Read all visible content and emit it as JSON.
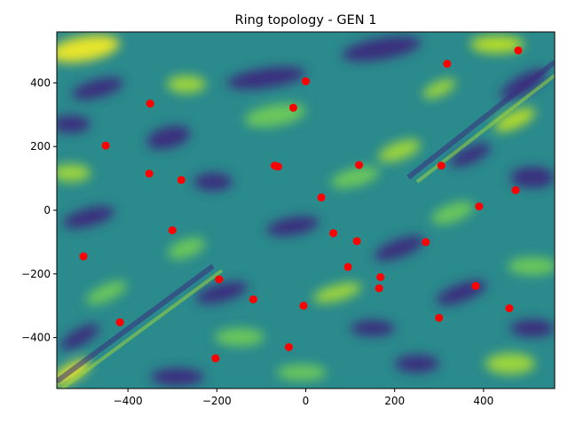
{
  "chart_data": {
    "type": "scatter",
    "title": "Ring topology - GEN 1",
    "xlabel": "",
    "ylabel": "",
    "xlim": [
      -560,
      560
    ],
    "ylim": [
      -560,
      560
    ],
    "xticks": [
      -400,
      -200,
      0,
      200,
      400
    ],
    "yticks": [
      -400,
      -200,
      0,
      200,
      400
    ],
    "xtick_labels": [
      "−400",
      "−200",
      "0",
      "200",
      "400"
    ],
    "ytick_labels": [
      "−400",
      "−200",
      "0",
      "200",
      "400"
    ],
    "grid": false,
    "background": "filled contour map (viridis colormap)",
    "colors": {
      "points": "#ff0000",
      "contour_low": "#3b2e7e",
      "contour_mid": "#2a8a8c",
      "contour_high": "#e6e52a"
    },
    "points": [
      {
        "x": 478,
        "y": 502
      },
      {
        "x": 318,
        "y": 460
      },
      {
        "x": 0,
        "y": 405
      },
      {
        "x": -350,
        "y": 335
      },
      {
        "x": -28,
        "y": 322
      },
      {
        "x": -450,
        "y": 203
      },
      {
        "x": -70,
        "y": 140
      },
      {
        "x": -62,
        "y": 137
      },
      {
        "x": 120,
        "y": 142
      },
      {
        "x": 305,
        "y": 140
      },
      {
        "x": -352,
        "y": 115
      },
      {
        "x": -280,
        "y": 95
      },
      {
        "x": 472,
        "y": 63
      },
      {
        "x": 35,
        "y": 40
      },
      {
        "x": 390,
        "y": 12
      },
      {
        "x": -300,
        "y": -63
      },
      {
        "x": 62,
        "y": -72
      },
      {
        "x": 115,
        "y": -97
      },
      {
        "x": 270,
        "y": -100
      },
      {
        "x": -500,
        "y": -145
      },
      {
        "x": 95,
        "y": -178
      },
      {
        "x": 168,
        "y": -210
      },
      {
        "x": -195,
        "y": -217
      },
      {
        "x": 165,
        "y": -245
      },
      {
        "x": 382,
        "y": -238
      },
      {
        "x": -118,
        "y": -280
      },
      {
        "x": -5,
        "y": -300
      },
      {
        "x": 458,
        "y": -308
      },
      {
        "x": 300,
        "y": -338
      },
      {
        "x": -418,
        "y": -352
      },
      {
        "x": -38,
        "y": -430
      },
      {
        "x": -203,
        "y": -465
      }
    ]
  }
}
